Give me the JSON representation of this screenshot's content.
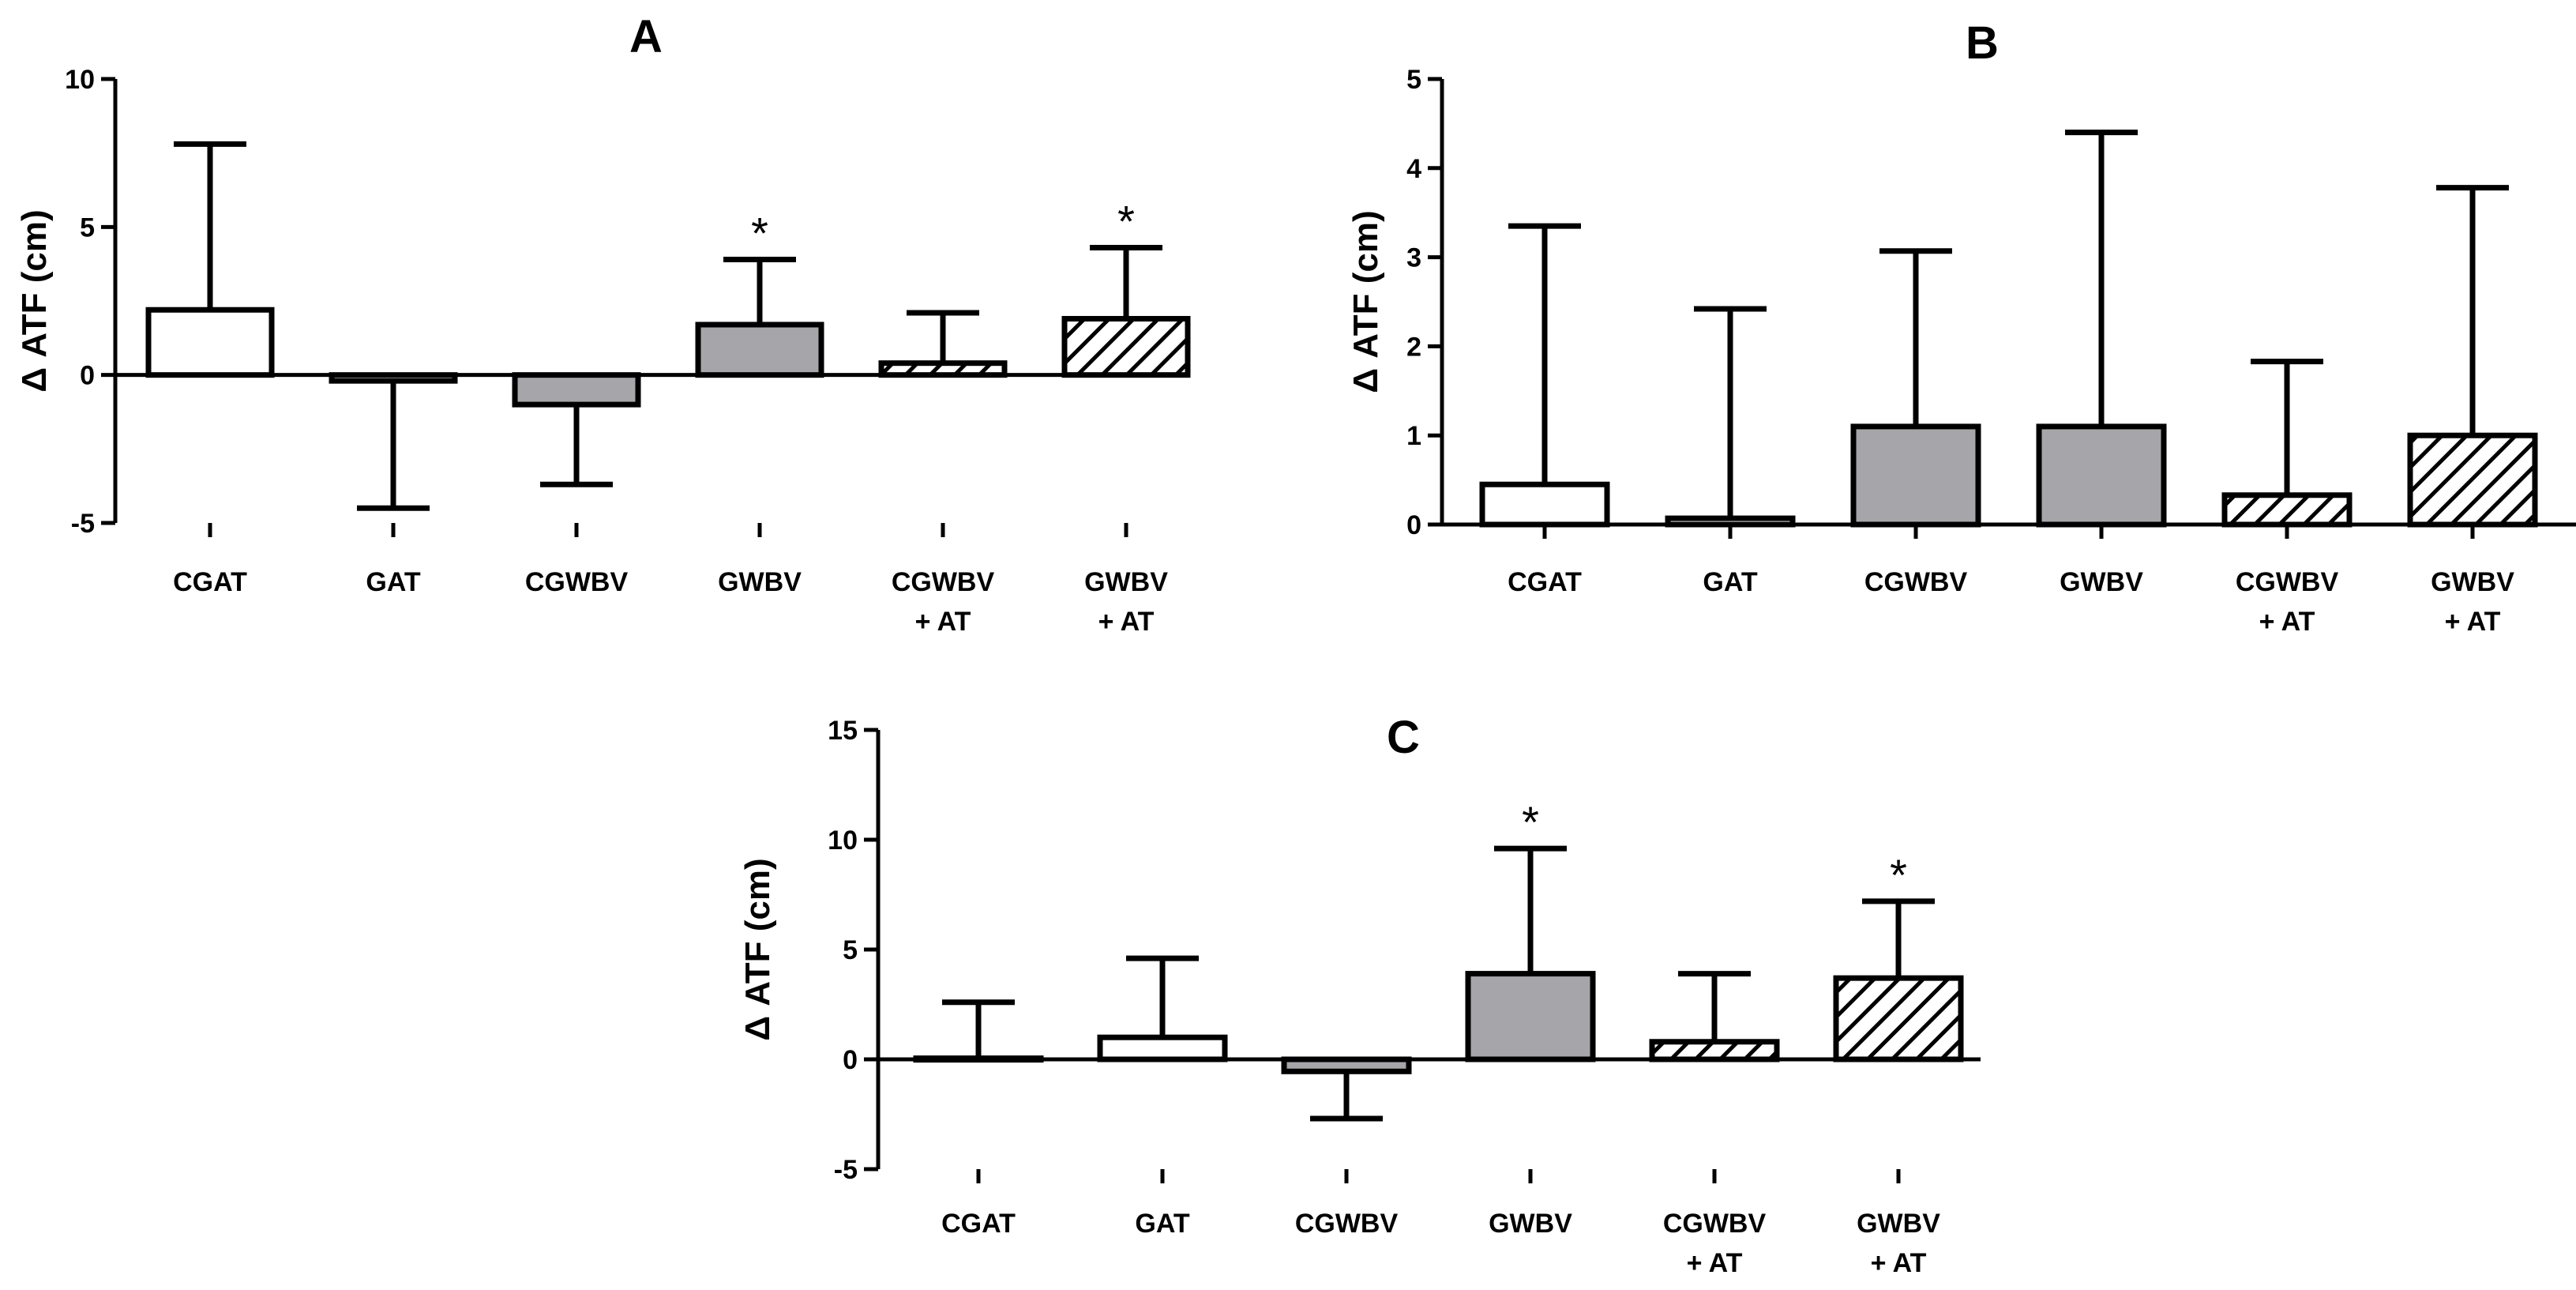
{
  "chart_data": [
    {
      "type": "bar",
      "title": "A",
      "ylabel": "Δ ATF (cm)",
      "xlabel": "",
      "ylim": [
        -5,
        10
      ],
      "yticks": [
        "-5",
        "0",
        "5",
        "10"
      ],
      "ytick_values": [
        -5,
        0,
        5,
        10
      ],
      "categories": [
        {
          "line1": "CGAT",
          "line2": ""
        },
        {
          "line1": "GAT",
          "line2": ""
        },
        {
          "line1": "CGWBV",
          "line2": ""
        },
        {
          "line1": "GWBV",
          "line2": ""
        },
        {
          "line1": "CGWBV",
          "line2": "+ AT"
        },
        {
          "line1": "GWBV",
          "line2": "+ AT"
        }
      ],
      "values": [
        2.2,
        -0.2,
        -1.0,
        1.7,
        0.4,
        1.9
      ],
      "error_bars": [
        7.8,
        -4.5,
        -3.7,
        3.9,
        2.1,
        4.3
      ],
      "fills": [
        "white",
        "white",
        "gray",
        "gray",
        "hatch",
        "hatch"
      ],
      "significance": [
        "",
        "",
        "",
        "*",
        "",
        "*"
      ]
    },
    {
      "type": "bar",
      "title": "B",
      "ylabel": "Δ ATF (cm)",
      "xlabel": "",
      "ylim": [
        0,
        5
      ],
      "yticks": [
        "0",
        "1",
        "2",
        "3",
        "4",
        "5"
      ],
      "ytick_values": [
        0,
        1,
        2,
        3,
        4,
        5
      ],
      "categories": [
        {
          "line1": "CGAT",
          "line2": ""
        },
        {
          "line1": "GAT",
          "line2": ""
        },
        {
          "line1": "CGWBV",
          "line2": ""
        },
        {
          "line1": "GWBV",
          "line2": ""
        },
        {
          "line1": "CGWBV",
          "line2": "+ AT"
        },
        {
          "line1": "GWBV",
          "line2": "+ AT"
        }
      ],
      "values": [
        0.45,
        0.07,
        1.1,
        1.1,
        0.33,
        1.0
      ],
      "error_bars": [
        3.35,
        2.42,
        3.07,
        4.4,
        1.83,
        3.78
      ],
      "fills": [
        "white",
        "white",
        "gray",
        "gray",
        "hatch",
        "hatch"
      ],
      "significance": [
        "",
        "",
        "",
        "",
        "",
        ""
      ]
    },
    {
      "type": "bar",
      "title": "C",
      "ylabel": "Δ ATF (cm)",
      "xlabel": "",
      "ylim": [
        -5,
        15
      ],
      "yticks": [
        "-5",
        "0",
        "5",
        "10",
        "15"
      ],
      "ytick_values": [
        -5,
        0,
        5,
        10,
        15
      ],
      "categories": [
        {
          "line1": "CGAT",
          "line2": ""
        },
        {
          "line1": "GAT",
          "line2": ""
        },
        {
          "line1": "CGWBV",
          "line2": ""
        },
        {
          "line1": "GWBV",
          "line2": ""
        },
        {
          "line1": "CGWBV",
          "line2": "+ AT"
        },
        {
          "line1": "GWBV",
          "line2": "+ AT"
        }
      ],
      "values": [
        0.05,
        1.0,
        -0.55,
        3.9,
        0.8,
        3.7
      ],
      "error_bars": [
        2.6,
        4.6,
        -2.7,
        9.6,
        3.9,
        7.2
      ],
      "fills": [
        "white",
        "white",
        "gray",
        "gray",
        "hatch",
        "hatch"
      ],
      "significance": [
        "",
        "",
        "",
        "*",
        "",
        "*"
      ]
    }
  ],
  "colors": {
    "axis": "#000000",
    "bar_white": "#ffffff",
    "bar_gray": "#a5a5aa",
    "bar_hatch_bg": "#ffffff",
    "bar_hatch_line": "#000000",
    "bar_stroke": "#000000"
  }
}
